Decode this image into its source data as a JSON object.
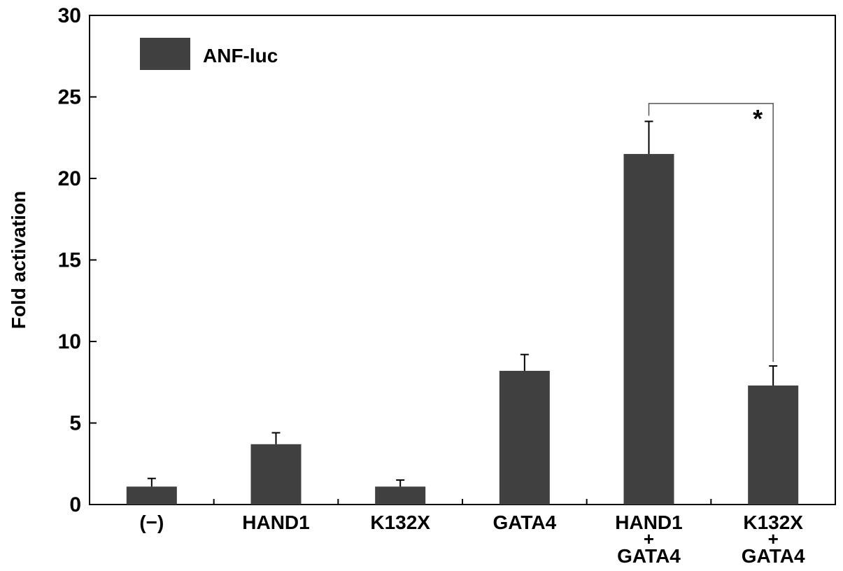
{
  "chart_data": {
    "type": "bar",
    "ylabel": "Fold activation",
    "ylim": [
      0,
      30
    ],
    "yticks": [
      "0",
      "5",
      "10",
      "15",
      "20",
      "25",
      "30"
    ],
    "categories": [
      [
        "(−)"
      ],
      [
        "HAND1"
      ],
      [
        "K132X"
      ],
      [
        "GATA4"
      ],
      [
        "HAND1",
        "+",
        "GATA4"
      ],
      [
        "K132X",
        "+",
        "GATA4"
      ]
    ],
    "series": [
      {
        "name": "ANF-luc",
        "color": "#404040",
        "values": [
          1.1,
          3.7,
          1.1,
          8.2,
          21.5,
          7.3
        ],
        "errors": [
          0.5,
          0.7,
          0.4,
          1.0,
          2.0,
          1.2
        ]
      }
    ],
    "legend": {
      "position": "top-left",
      "label": "ANF-luc"
    },
    "significance": {
      "between": [
        4,
        5
      ],
      "label": "*"
    },
    "grid": false
  }
}
